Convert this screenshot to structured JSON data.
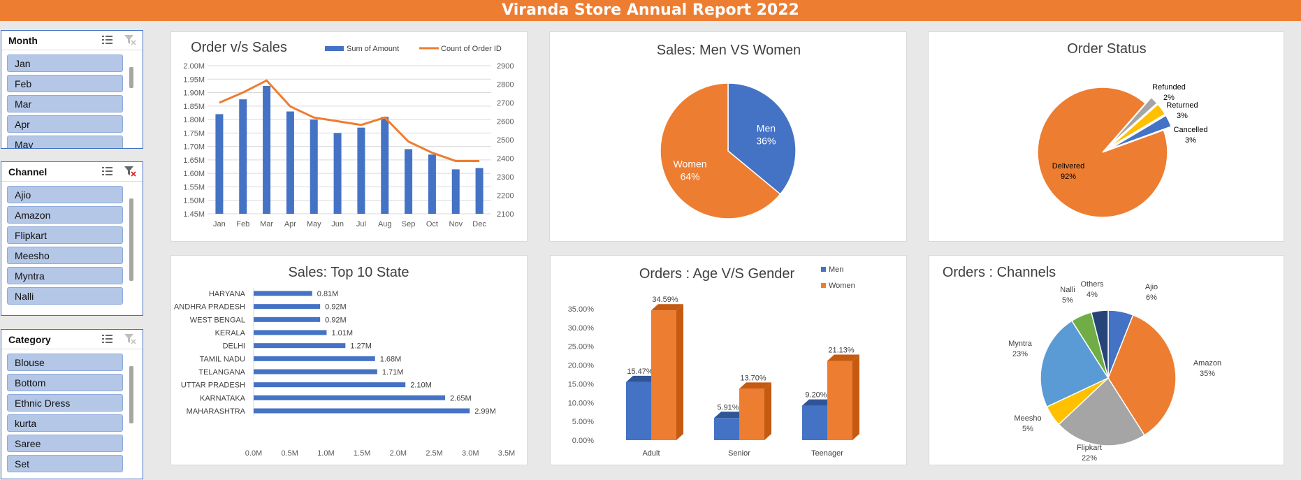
{
  "report_title": "Viranda Store Annual Report 2022",
  "slicers": {
    "month": {
      "title": "Month",
      "items": [
        "Jan",
        "Feb",
        "Mar",
        "Apr",
        "May"
      ]
    },
    "channel": {
      "title": "Channel",
      "items": [
        "Ajio",
        "Amazon",
        "Flipkart",
        "Meesho",
        "Myntra",
        "Nalli"
      ]
    },
    "category": {
      "title": "Category",
      "items": [
        "Blouse",
        "Bottom",
        "Ethnic Dress",
        "kurta",
        "Saree",
        "Set"
      ]
    },
    "multiselect_icon": "multi-select-icon",
    "clear_icon": "clear-filter-icon"
  },
  "colors": {
    "banner": "#ed7d31",
    "blue": "#4472c4",
    "orange": "#ed7d31",
    "gray": "#a5a5a5",
    "yellow": "#ffc000",
    "lightblue": "#5b9bd5",
    "green": "#70ad47",
    "navy": "#264478"
  },
  "chart_data": [
    {
      "id": "order_vs_sales",
      "type": "bar",
      "title": "Order v/s Sales",
      "categories": [
        "Jan",
        "Feb",
        "Mar",
        "Apr",
        "May",
        "Jun",
        "Jul",
        "Aug",
        "Sep",
        "Oct",
        "Nov",
        "Dec"
      ],
      "series": [
        {
          "name": "Sum of Amount",
          "type": "bar",
          "axis": "left",
          "values": [
            1.82,
            1.875,
            1.925,
            1.83,
            1.8,
            1.75,
            1.77,
            1.81,
            1.69,
            1.67,
            1.615,
            1.62
          ]
        },
        {
          "name": "Count of Order ID",
          "type": "line",
          "axis": "right",
          "values": [
            2700,
            2755,
            2820,
            2680,
            2620,
            2600,
            2580,
            2620,
            2490,
            2430,
            2385,
            2385
          ]
        }
      ],
      "ylim_left": [
        1.45,
        2.0
      ],
      "yticks_left": [
        "2.00M",
        "1.95M",
        "1.90M",
        "1.85M",
        "1.80M",
        "1.75M",
        "1.70M",
        "1.65M",
        "1.60M",
        "1.55M",
        "1.50M",
        "1.45M"
      ],
      "ylim_right": [
        2100,
        2900
      ],
      "yticks_right": [
        "2900",
        "2800",
        "2700",
        "2600",
        "2500",
        "2400",
        "2300",
        "2200",
        "2100"
      ],
      "grid": true,
      "legend": "top"
    },
    {
      "id": "men_vs_women",
      "type": "pie",
      "title": "Sales: Men VS Women",
      "slices": [
        {
          "label": "Men",
          "value": 36,
          "pct": "36%"
        },
        {
          "label": "Women",
          "value": 64,
          "pct": "64%"
        }
      ]
    },
    {
      "id": "order_status",
      "type": "pie",
      "title": "Order Status",
      "slices": [
        {
          "label": "Cancelled",
          "value": 3,
          "pct": "3%"
        },
        {
          "label": "Returned",
          "value": 3,
          "pct": "3%"
        },
        {
          "label": "Refunded",
          "value": 2,
          "pct": "2%"
        },
        {
          "label": "Delivered",
          "value": 92,
          "pct": "92%"
        }
      ]
    },
    {
      "id": "top10_state",
      "type": "bar",
      "orientation": "horizontal",
      "title": "Sales: Top 10 State",
      "categories": [
        "HARYANA",
        "ANDHRA PRADESH",
        "WEST BENGAL",
        "KERALA",
        "DELHI",
        "TAMIL NADU",
        "TELANGANA",
        "UTTAR PRADESH",
        "KARNATAKA",
        "MAHARASHTRA"
      ],
      "values": [
        0.81,
        0.92,
        0.92,
        1.01,
        1.27,
        1.68,
        1.71,
        2.1,
        2.65,
        2.99
      ],
      "labels": [
        "0.81M",
        "0.92M",
        "0.92M",
        "1.01M",
        "1.27M",
        "1.68M",
        "1.71M",
        "2.10M",
        "2.65M",
        "2.99M"
      ],
      "xlim": [
        0,
        3.5
      ],
      "xticks": [
        "0.0M",
        "0.5M",
        "1.0M",
        "1.5M",
        "2.0M",
        "2.5M",
        "3.0M",
        "3.5M"
      ]
    },
    {
      "id": "age_vs_gender",
      "type": "bar",
      "title": "Orders : Age V/S Gender",
      "categories": [
        "Adult",
        "Senior",
        "Teenager"
      ],
      "series": [
        {
          "name": "Men",
          "values": [
            15.47,
            5.91,
            9.2
          ],
          "labels": [
            "15.47%",
            "5.91%",
            "9.20%"
          ]
        },
        {
          "name": "Women",
          "values": [
            34.59,
            13.7,
            21.13
          ],
          "labels": [
            "34.59%",
            "13.70%",
            "21.13%"
          ]
        }
      ],
      "ylim": [
        0,
        35
      ],
      "yticks": [
        "35.00%",
        "30.00%",
        "25.00%",
        "20.00%",
        "15.00%",
        "10.00%",
        "5.00%",
        "0.00%"
      ],
      "legend": "top-right"
    },
    {
      "id": "channels",
      "type": "pie",
      "title": "Orders : Channels",
      "slices": [
        {
          "label": "Ajio",
          "value": 6,
          "pct": "6%"
        },
        {
          "label": "Amazon",
          "value": 35,
          "pct": "35%"
        },
        {
          "label": "Flipkart",
          "value": 22,
          "pct": "22%"
        },
        {
          "label": "Meesho",
          "value": 5,
          "pct": "5%"
        },
        {
          "label": "Myntra",
          "value": 23,
          "pct": "23%"
        },
        {
          "label": "Nalli",
          "value": 5,
          "pct": "5%"
        },
        {
          "label": "Others",
          "value": 4,
          "pct": "4%"
        }
      ]
    }
  ]
}
